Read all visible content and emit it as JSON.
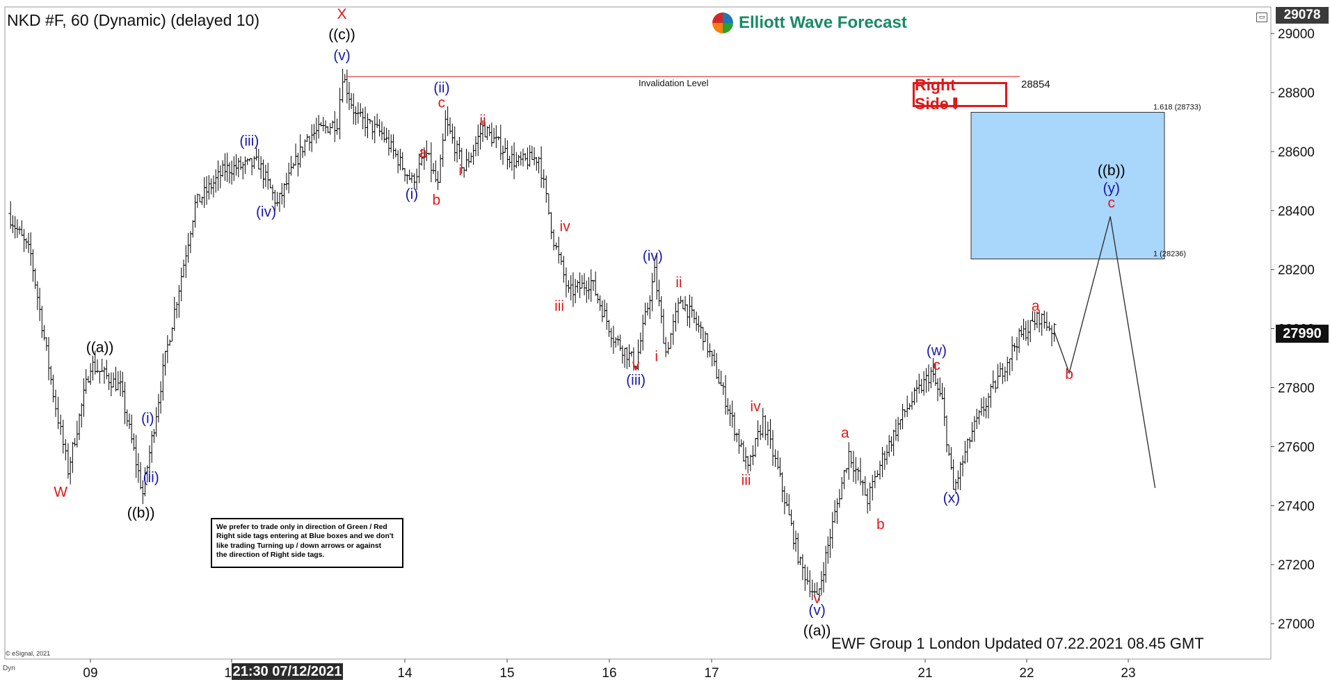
{
  "header": {
    "title": "NKD #F, 60 (Dynamic) (delayed 10)",
    "logo_text": "Elliott Wave Forecast",
    "right_side_tag": "Right Side⬇",
    "maximize_icon": "window-maximize-icon"
  },
  "note": {
    "lines": [
      "We prefer to trade only in direction of Green / Red",
      "Right side tags entering at Blue boxes and we don't",
      "like trading Turning up / down arrows or against",
      "the direction of Right side tags."
    ]
  },
  "footer": {
    "updated": "EWF Group 1 London Updated 07.22.2021 08.45 GMT",
    "copyright": "© eSignal, 2021",
    "dyn_button": "Dyn",
    "crosshair_time": "21:30 07/12/2021"
  },
  "price_axis": {
    "current_price_tag": "27990",
    "top_price_tag": "29078"
  },
  "colors": {
    "bars": "#000000",
    "wave_red": "#e01818",
    "wave_blue": "#1a1aa8",
    "wave_black": "#000000",
    "blue_box_fill": "#a9d6fb",
    "invalidation_line": "#e05050",
    "projection_line": "#333333"
  },
  "chart_data": {
    "type": "ohlc",
    "x_ticks": [
      "09",
      "12",
      "14",
      "15",
      "16",
      "17",
      "21",
      "22",
      "23"
    ],
    "y_ticks": [
      27000,
      27200,
      27400,
      27600,
      27800,
      28000,
      28200,
      28400,
      28600,
      28800,
      29000
    ],
    "ylim": [
      26880,
      29090
    ],
    "grid": false,
    "invalidation": {
      "label": "Invalidation Level",
      "value": 28854,
      "value_label": "28854"
    },
    "blue_box": {
      "top": 28733,
      "bottom": 28236,
      "top_label": "1.618 (28733)",
      "bottom_label": "1 (28236)"
    },
    "wave_labels": [
      {
        "text": "W",
        "color": "red",
        "price": 27430,
        "bar": 0.14
      },
      {
        "text": "((a))",
        "color": "black",
        "price": 27920,
        "bar": 0.245
      },
      {
        "text": "(i)",
        "color": "blue",
        "price": 27680,
        "bar": 0.373
      },
      {
        "text": "(ii)",
        "color": "blue",
        "price": 27480,
        "bar": 0.382
      },
      {
        "text": "((b))",
        "color": "black",
        "price": 27360,
        "bar": 0.355
      },
      {
        "text": "(iii)",
        "color": "blue",
        "price": 28620,
        "bar": 0.645
      },
      {
        "text": "(iv)",
        "color": "blue",
        "price": 28380,
        "bar": 0.69
      },
      {
        "text": "X",
        "color": "red",
        "price": 29050,
        "bar": 0.893
      },
      {
        "text": "((c))",
        "color": "black",
        "price": 28980,
        "bar": 0.893
      },
      {
        "text": "(v)",
        "color": "blue",
        "price": 28910,
        "bar": 0.893
      },
      {
        "text": "(i)",
        "color": "blue",
        "price": 28440,
        "bar": 1.08
      },
      {
        "text": "a",
        "color": "red",
        "price": 28580,
        "bar": 1.11
      },
      {
        "text": "b",
        "color": "red",
        "price": 28420,
        "bar": 1.146
      },
      {
        "text": "(ii)",
        "color": "blue",
        "price": 28800,
        "bar": 1.16
      },
      {
        "text": "c",
        "color": "red",
        "price": 28750,
        "bar": 1.16
      },
      {
        "text": "ii",
        "color": "red",
        "price": 28690,
        "bar": 1.27
      },
      {
        "text": "i",
        "color": "red",
        "price": 28520,
        "bar": 1.21
      },
      {
        "text": "iv",
        "color": "red",
        "price": 28330,
        "bar": 1.49
      },
      {
        "text": "iii",
        "color": "red",
        "price": 28060,
        "bar": 1.475
      },
      {
        "text": "(iv)",
        "color": "blue",
        "price": 28230,
        "bar": 1.725
      },
      {
        "text": "ii",
        "color": "red",
        "price": 28140,
        "bar": 1.795
      },
      {
        "text": "v",
        "color": "red",
        "price": 27860,
        "bar": 1.68
      },
      {
        "text": "(iii)",
        "color": "blue",
        "price": 27810,
        "bar": 1.68
      },
      {
        "text": "i",
        "color": "red",
        "price": 27890,
        "bar": 1.735
      },
      {
        "text": "iv",
        "color": "red",
        "price": 27720,
        "bar": 2.0
      },
      {
        "text": "iii",
        "color": "red",
        "price": 27470,
        "bar": 1.975
      },
      {
        "text": "v",
        "color": "red",
        "price": 27070,
        "bar": 2.165
      },
      {
        "text": "(v)",
        "color": "blue",
        "price": 27030,
        "bar": 2.165
      },
      {
        "text": "((a))",
        "color": "black",
        "price": 26960,
        "bar": 2.165
      },
      {
        "text": "a",
        "color": "red",
        "price": 27630,
        "bar": 2.24
      },
      {
        "text": "b",
        "color": "red",
        "price": 27320,
        "bar": 2.335
      },
      {
        "text": "(w)",
        "color": "blue",
        "price": 27910,
        "bar": 2.485
      },
      {
        "text": "c",
        "color": "red",
        "price": 27860,
        "bar": 2.485
      },
      {
        "text": "(x)",
        "color": "blue",
        "price": 27410,
        "bar": 2.525
      },
      {
        "text": "a",
        "color": "red",
        "price": 28060,
        "bar": 2.75
      },
      {
        "text": "b",
        "color": "red",
        "price": 27830,
        "bar": 2.84
      },
      {
        "text": "((b))",
        "color": "black",
        "price": 28520,
        "bar": 2.953
      },
      {
        "text": "(y)",
        "color": "blue",
        "price": 28460,
        "bar": 2.953
      },
      {
        "text": "c",
        "color": "red",
        "price": 28410,
        "bar": 2.953
      }
    ],
    "projection": [
      [
        2.8,
        27990
      ],
      [
        2.84,
        27850
      ],
      [
        2.95,
        28380
      ],
      [
        3.07,
        27460
      ]
    ],
    "anchors": [
      [
        0.0,
        28390
      ],
      [
        0.06,
        28250
      ],
      [
        0.12,
        27780
      ],
      [
        0.16,
        27520
      ],
      [
        0.22,
        27880
      ],
      [
        0.3,
        27800
      ],
      [
        0.36,
        27440
      ],
      [
        0.42,
        27900
      ],
      [
        0.5,
        28420
      ],
      [
        0.58,
        28540
      ],
      [
        0.67,
        28560
      ],
      [
        0.72,
        28420
      ],
      [
        0.8,
        28650
      ],
      [
        0.88,
        28700
      ],
      [
        0.895,
        28860
      ],
      [
        0.93,
        28720
      ],
      [
        1.0,
        28660
      ],
      [
        1.08,
        28500
      ],
      [
        1.12,
        28590
      ],
      [
        1.15,
        28480
      ],
      [
        1.17,
        28700
      ],
      [
        1.22,
        28540
      ],
      [
        1.27,
        28680
      ],
      [
        1.36,
        28560
      ],
      [
        1.42,
        28580
      ],
      [
        1.46,
        28300
      ],
      [
        1.5,
        28120
      ],
      [
        1.56,
        28160
      ],
      [
        1.62,
        27970
      ],
      [
        1.68,
        27880
      ],
      [
        1.73,
        28190
      ],
      [
        1.76,
        27920
      ],
      [
        1.8,
        28100
      ],
      [
        1.86,
        27980
      ],
      [
        1.92,
        27760
      ],
      [
        1.98,
        27520
      ],
      [
        2.02,
        27690
      ],
      [
        2.06,
        27520
      ],
      [
        2.12,
        27200
      ],
      [
        2.165,
        27080
      ],
      [
        2.2,
        27300
      ],
      [
        2.25,
        27580
      ],
      [
        2.3,
        27420
      ],
      [
        2.34,
        27560
      ],
      [
        2.4,
        27720
      ],
      [
        2.47,
        27850
      ],
      [
        2.5,
        27750
      ],
      [
        2.53,
        27450
      ],
      [
        2.58,
        27650
      ],
      [
        2.63,
        27780
      ],
      [
        2.7,
        27960
      ],
      [
        2.76,
        28040
      ],
      [
        2.8,
        27990
      ]
    ]
  }
}
